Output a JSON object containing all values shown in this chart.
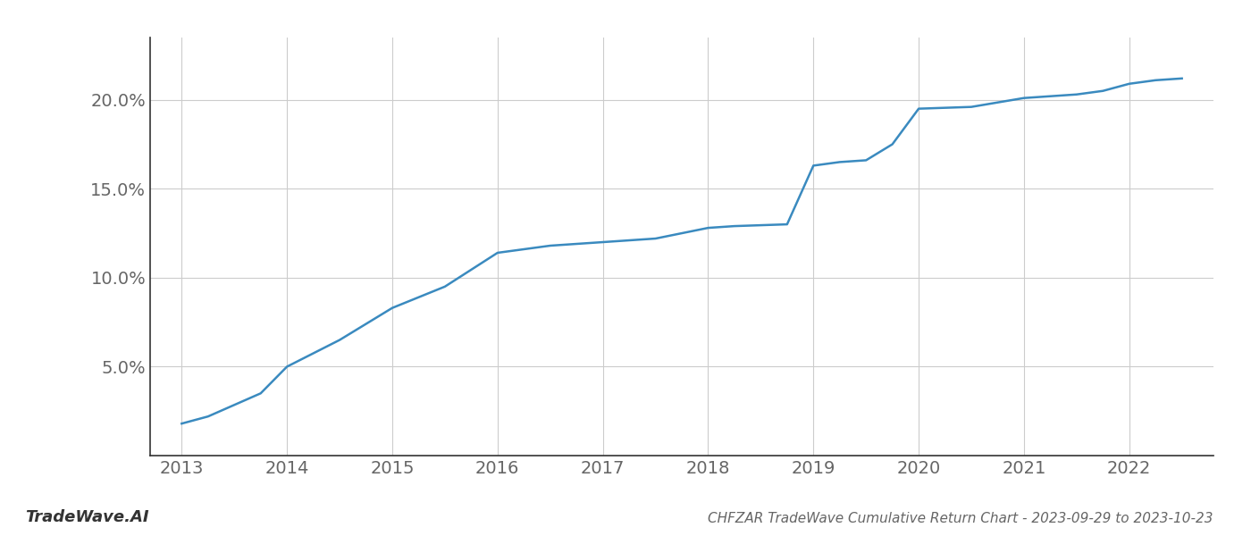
{
  "title": "CHFZAR TradeWave Cumulative Return Chart - 2023-09-29 to 2023-10-23",
  "watermark": "TradeWave.AI",
  "line_color": "#3a8abf",
  "background_color": "#ffffff",
  "grid_color": "#cccccc",
  "x_values": [
    2013.0,
    2013.25,
    2013.75,
    2014.0,
    2014.5,
    2015.0,
    2015.5,
    2016.0,
    2016.25,
    2016.5,
    2017.0,
    2017.25,
    2017.5,
    2017.75,
    2018.0,
    2018.25,
    2018.75,
    2019.0,
    2019.25,
    2019.5,
    2019.75,
    2020.0,
    2020.5,
    2021.0,
    2021.25,
    2021.5,
    2021.75,
    2022.0,
    2022.25,
    2022.5
  ],
  "y_values": [
    1.8,
    2.2,
    3.5,
    5.0,
    6.5,
    8.3,
    9.5,
    11.4,
    11.6,
    11.8,
    12.0,
    12.1,
    12.2,
    12.5,
    12.8,
    12.9,
    13.0,
    16.3,
    16.5,
    16.6,
    17.5,
    19.5,
    19.6,
    20.1,
    20.2,
    20.3,
    20.5,
    20.9,
    21.1,
    21.2
  ],
  "xlim": [
    2012.7,
    2022.8
  ],
  "ylim": [
    0,
    23.5
  ],
  "yticks": [
    5.0,
    10.0,
    15.0,
    20.0
  ],
  "xticks": [
    2013,
    2014,
    2015,
    2016,
    2017,
    2018,
    2019,
    2020,
    2021,
    2022
  ],
  "tick_label_fontsize": 14,
  "title_fontsize": 11,
  "watermark_fontsize": 13,
  "line_width": 1.8,
  "spine_color": "#333333",
  "tick_color": "#666666"
}
